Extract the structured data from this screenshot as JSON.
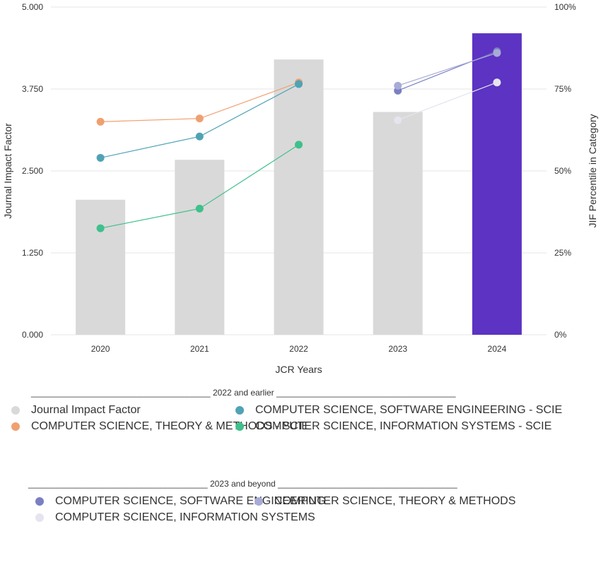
{
  "chart_data": {
    "type": "bar",
    "categories": [
      "2020",
      "2021",
      "2022",
      "2023",
      "2024"
    ],
    "xlabel": "JCR Years",
    "ylabel": "Journal Impact Factor",
    "ylabel_right": "JIF Percentile in Category",
    "ylim": [
      0,
      5
    ],
    "ylim_right": [
      0,
      100
    ],
    "y_ticks": [
      "0.000",
      "1.250",
      "2.500",
      "3.750",
      "5.000"
    ],
    "y_right_ticks": [
      "0%",
      "25%",
      "50%",
      "75%",
      "100%"
    ],
    "bar_series": {
      "name": "Journal Impact Factor",
      "values": [
        2.06,
        2.67,
        4.2,
        3.4,
        4.6
      ],
      "colors": [
        "#d9d9d9",
        "#d9d9d9",
        "#d9d9d9",
        "#d9d9d9",
        "#5c33c2"
      ]
    },
    "line_series": [
      {
        "name": "COMPUTER SCIENCE, THEORY & METHODS - SCIE",
        "color": "#f0a070",
        "x": [
          "2020",
          "2021",
          "2022"
        ],
        "values": [
          65,
          66,
          77
        ]
      },
      {
        "name": "COMPUTER SCIENCE, SOFTWARE ENGINEERING - SCIE",
        "color": "#4fa3b5",
        "x": [
          "2020",
          "2021",
          "2022"
        ],
        "values": [
          54,
          60.5,
          76.5
        ]
      },
      {
        "name": "COMPUTER SCIENCE, INFORMATION SYSTEMS - SCIE",
        "color": "#3fc08c",
        "x": [
          "2020",
          "2021",
          "2022"
        ],
        "values": [
          32.5,
          38.5,
          58
        ]
      },
      {
        "name": "COMPUTER SCIENCE, SOFTWARE ENGINEERING",
        "color": "#7a7fc2",
        "x": [
          "2023",
          "2024"
        ],
        "values": [
          74.5,
          86.5
        ]
      },
      {
        "name": "COMPUTER SCIENCE, THEORY & METHODS",
        "color": "#a7abd6",
        "x": [
          "2023",
          "2024"
        ],
        "values": [
          76,
          86
        ]
      },
      {
        "name": "COMPUTER SCIENCE, INFORMATION SYSTEMS",
        "color": "#e4e5ee",
        "x": [
          "2023",
          "2024"
        ],
        "values": [
          65.5,
          77
        ]
      }
    ],
    "grid": true,
    "legend_position": "bottom"
  },
  "legend": {
    "group1": {
      "header": "______________________________________ 2022 and earlier ______________________________________",
      "items": [
        {
          "label": "Journal Impact Factor",
          "color": "#d9d9d9"
        },
        {
          "label": "COMPUTER SCIENCE, SOFTWARE ENGINEERING - SCIE",
          "color": "#4fa3b5"
        },
        {
          "label": "COMPUTER SCIENCE, THEORY & METHODS - SCIE",
          "color": "#f0a070"
        },
        {
          "label": "COMPUTER SCIENCE, INFORMATION SYSTEMS - SCIE",
          "color": "#3fc08c"
        }
      ]
    },
    "group2": {
      "header": "______________________________________ 2023 and beyond ______________________________________",
      "items": [
        {
          "label": "COMPUTER SCIENCE, SOFTWARE ENGINEERING",
          "color": "#7a7fc2"
        },
        {
          "label": "COMPUTER SCIENCE, THEORY & METHODS",
          "color": "#a7abd6"
        },
        {
          "label": "COMPUTER SCIENCE, INFORMATION SYSTEMS",
          "color": "#e4e5ee"
        }
      ]
    }
  }
}
